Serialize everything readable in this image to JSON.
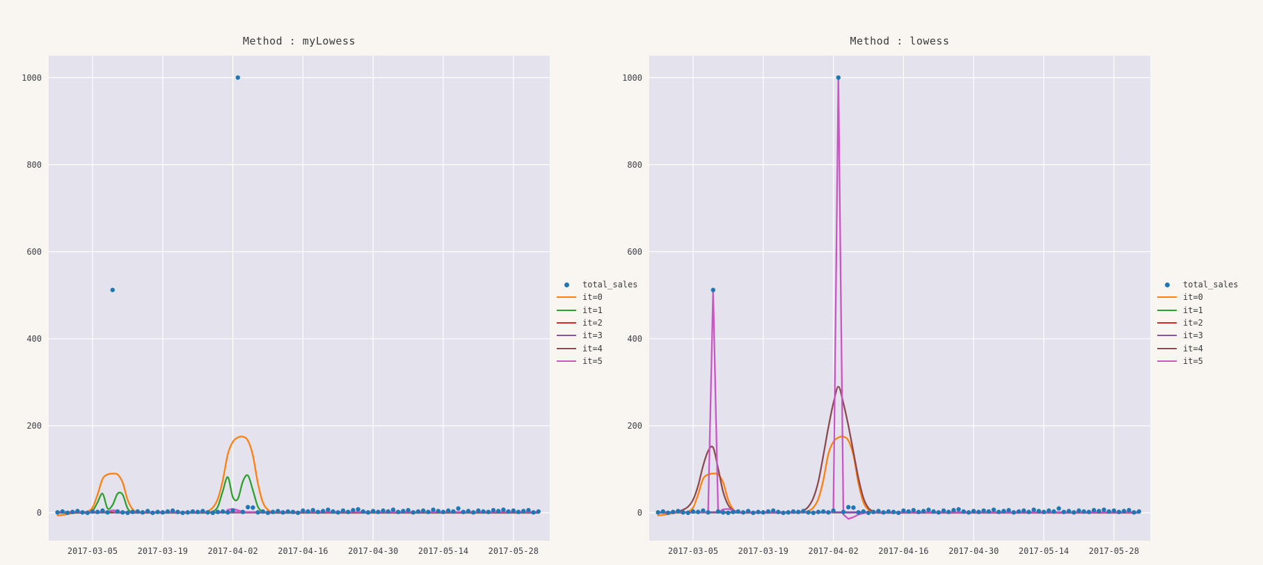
{
  "figure": {
    "background": "#f9f6f2",
    "plot_background": "#e4e2ed",
    "grid_color": "#ffffff",
    "text_color": "#3a3a3a",
    "tick_color": "#3d3d45"
  },
  "chart_data": [
    {
      "type": "scatter",
      "title": "Method : myLowess",
      "x_start_date": "2017-02-26",
      "x_unit": "day_offset",
      "x_tick_labels": [
        "2017-03-05",
        "2017-03-19",
        "2017-04-02",
        "2017-04-16",
        "2017-04-30",
        "2017-05-14",
        "2017-05-28"
      ],
      "x_tick_days": [
        7,
        21,
        35,
        49,
        63,
        77,
        91
      ],
      "y_ticks": [
        0,
        200,
        400,
        600,
        800,
        1000
      ],
      "ylim": [
        -64,
        1051
      ],
      "grid": true,
      "legend_position": "outside-right",
      "scatter": {
        "name": "total_sales",
        "color": "#1f77b4",
        "values": [
          1,
          3,
          0,
          2,
          4,
          1,
          0,
          3,
          2,
          5,
          1,
          512,
          3,
          1,
          0,
          2,
          3,
          1,
          4,
          0,
          2,
          1,
          3,
          5,
          2,
          0,
          1,
          3,
          2,
          4,
          1,
          0,
          2,
          3,
          1,
          5,
          1000,
          2,
          13,
          12,
          1,
          3,
          0,
          2,
          4,
          1,
          3,
          2,
          0,
          5,
          3,
          6,
          2,
          4,
          7,
          3,
          1,
          5,
          2,
          6,
          8,
          3,
          1,
          4,
          2,
          5,
          3,
          7,
          2,
          4,
          6,
          1,
          3,
          5,
          2,
          7,
          4,
          2,
          5,
          3,
          10,
          2,
          4,
          1,
          5,
          3,
          2,
          6,
          4,
          7,
          3,
          5,
          2,
          4,
          6,
          1,
          3
        ]
      },
      "series": [
        {
          "name": "it=0",
          "color": "#ff7f0e",
          "smooth": true,
          "points": [
            [
              0,
              -6
            ],
            [
              1,
              -5
            ],
            [
              2,
              -3
            ],
            [
              3,
              -1
            ],
            [
              4,
              0
            ],
            [
              5,
              0
            ],
            [
              6,
              3
            ],
            [
              7,
              12
            ],
            [
              8,
              42
            ],
            [
              9,
              78
            ],
            [
              10,
              88
            ],
            [
              11,
              90
            ],
            [
              12,
              88
            ],
            [
              13,
              70
            ],
            [
              14,
              30
            ],
            [
              15,
              8
            ],
            [
              16,
              1
            ],
            [
              17,
              0
            ],
            [
              20,
              0
            ],
            [
              28,
              0
            ],
            [
              29,
              1
            ],
            [
              30,
              4
            ],
            [
              31,
              12
            ],
            [
              32,
              32
            ],
            [
              33,
              75
            ],
            [
              34,
              135
            ],
            [
              35,
              163
            ],
            [
              36,
              173
            ],
            [
              37,
              175
            ],
            [
              38,
              166
            ],
            [
              39,
              132
            ],
            [
              40,
              68
            ],
            [
              41,
              24
            ],
            [
              42,
              7
            ],
            [
              43,
              1
            ],
            [
              44,
              0
            ],
            [
              50,
              0
            ],
            [
              96,
              0
            ]
          ]
        },
        {
          "name": "it=1",
          "color": "#2ca02c",
          "smooth": true,
          "points": [
            [
              0,
              0
            ],
            [
              5,
              0
            ],
            [
              6,
              0
            ],
            [
              7,
              4
            ],
            [
              8,
              24
            ],
            [
              9,
              44
            ],
            [
              10,
              10
            ],
            [
              11,
              18
            ],
            [
              12,
              44
            ],
            [
              13,
              42
            ],
            [
              14,
              10
            ],
            [
              15,
              1
            ],
            [
              16,
              0
            ],
            [
              25,
              0
            ],
            [
              30,
              0
            ],
            [
              31,
              3
            ],
            [
              32,
              14
            ],
            [
              33,
              50
            ],
            [
              34,
              82
            ],
            [
              35,
              36
            ],
            [
              36,
              32
            ],
            [
              37,
              72
            ],
            [
              38,
              86
            ],
            [
              39,
              52
            ],
            [
              40,
              14
            ],
            [
              41,
              3
            ],
            [
              42,
              0
            ],
            [
              50,
              0
            ],
            [
              96,
              0
            ]
          ]
        },
        {
          "name": "it=2",
          "color": "#d62728",
          "smooth": false,
          "points": [
            [
              0,
              0.5
            ],
            [
              96,
              0.5
            ]
          ]
        },
        {
          "name": "it=3",
          "color": "#8a4fb0",
          "smooth": false,
          "points": [
            [
              0,
              1
            ],
            [
              96,
              1
            ]
          ]
        },
        {
          "name": "it=4",
          "color": "#8a4a4f",
          "smooth": false,
          "points": [
            [
              0,
              1.5
            ],
            [
              96,
              1.5
            ]
          ]
        },
        {
          "name": "it=5",
          "color": "#ca55c5",
          "smooth": true,
          "points": [
            [
              0,
              2
            ],
            [
              8,
              2
            ],
            [
              10,
              3
            ],
            [
              11,
              6
            ],
            [
              12,
              4
            ],
            [
              13,
              2
            ],
            [
              32,
              2
            ],
            [
              34,
              7
            ],
            [
              35,
              9
            ],
            [
              36,
              6
            ],
            [
              37,
              3
            ],
            [
              38,
              2
            ],
            [
              96,
              2
            ]
          ]
        }
      ]
    },
    {
      "type": "scatter",
      "title": "Method : lowess",
      "x_start_date": "2017-02-26",
      "x_unit": "day_offset",
      "x_tick_labels": [
        "2017-03-05",
        "2017-03-19",
        "2017-04-02",
        "2017-04-16",
        "2017-04-30",
        "2017-05-14",
        "2017-05-28"
      ],
      "x_tick_days": [
        7,
        21,
        35,
        49,
        63,
        77,
        91
      ],
      "y_ticks": [
        0,
        200,
        400,
        600,
        800,
        1000
      ],
      "ylim": [
        -64,
        1051
      ],
      "grid": true,
      "legend_position": "outside-right",
      "scatter": {
        "name": "total_sales",
        "color": "#1f77b4",
        "values": [
          1,
          3,
          0,
          2,
          4,
          1,
          0,
          3,
          2,
          5,
          1,
          512,
          3,
          1,
          0,
          2,
          3,
          1,
          4,
          0,
          2,
          1,
          3,
          5,
          2,
          0,
          1,
          3,
          2,
          4,
          1,
          0,
          2,
          3,
          1,
          5,
          1000,
          2,
          13,
          12,
          1,
          3,
          0,
          2,
          4,
          1,
          3,
          2,
          0,
          5,
          3,
          6,
          2,
          4,
          7,
          3,
          1,
          5,
          2,
          6,
          8,
          3,
          1,
          4,
          2,
          5,
          3,
          7,
          2,
          4,
          6,
          1,
          3,
          5,
          2,
          7,
          4,
          2,
          5,
          3,
          10,
          2,
          4,
          1,
          5,
          3,
          2,
          6,
          4,
          7,
          3,
          5,
          2,
          4,
          6,
          1,
          3
        ]
      },
      "series": [
        {
          "name": "it=0",
          "color": "#ff7f0e",
          "smooth": true,
          "points": [
            [
              0,
              -6
            ],
            [
              1,
              -5
            ],
            [
              2,
              -3
            ],
            [
              3,
              -1
            ],
            [
              4,
              0
            ],
            [
              5,
              0
            ],
            [
              6,
              3
            ],
            [
              7,
              12
            ],
            [
              8,
              42
            ],
            [
              9,
              78
            ],
            [
              10,
              88
            ],
            [
              11,
              90
            ],
            [
              12,
              88
            ],
            [
              13,
              70
            ],
            [
              14,
              30
            ],
            [
              15,
              8
            ],
            [
              16,
              1
            ],
            [
              17,
              0
            ],
            [
              20,
              0
            ],
            [
              28,
              0
            ],
            [
              29,
              1
            ],
            [
              30,
              4
            ],
            [
              31,
              12
            ],
            [
              32,
              32
            ],
            [
              33,
              75
            ],
            [
              34,
              135
            ],
            [
              35,
              163
            ],
            [
              36,
              173
            ],
            [
              37,
              175
            ],
            [
              38,
              166
            ],
            [
              39,
              132
            ],
            [
              40,
              68
            ],
            [
              41,
              24
            ],
            [
              42,
              7
            ],
            [
              43,
              1
            ],
            [
              44,
              0
            ],
            [
              50,
              0
            ],
            [
              96,
              0
            ]
          ]
        },
        {
          "name": "it=1",
          "color": "#2ca02c",
          "smooth": false,
          "points": [
            [
              0,
              0.5
            ],
            [
              96,
              0.5
            ]
          ]
        },
        {
          "name": "it=2",
          "color": "#d62728",
          "smooth": false,
          "points": [
            [
              0,
              1
            ],
            [
              96,
              1
            ]
          ]
        },
        {
          "name": "it=3",
          "color": "#8a4fb0",
          "smooth": false,
          "points": [
            [
              0,
              1.5
            ],
            [
              96,
              1.5
            ]
          ]
        },
        {
          "name": "it=4",
          "color": "#8a4a4f",
          "smooth": true,
          "points": [
            [
              0,
              0
            ],
            [
              2,
              0
            ],
            [
              3,
              1
            ],
            [
              4,
              3
            ],
            [
              5,
              7
            ],
            [
              6,
              14
            ],
            [
              7,
              30
            ],
            [
              8,
              62
            ],
            [
              9,
              108
            ],
            [
              10,
              142
            ],
            [
              11,
              150
            ],
            [
              12,
              102
            ],
            [
              13,
              48
            ],
            [
              14,
              18
            ],
            [
              15,
              6
            ],
            [
              16,
              1
            ],
            [
              17,
              0
            ],
            [
              22,
              0
            ],
            [
              27,
              0
            ],
            [
              28,
              1
            ],
            [
              29,
              5
            ],
            [
              30,
              14
            ],
            [
              31,
              34
            ],
            [
              32,
              72
            ],
            [
              33,
              132
            ],
            [
              34,
              196
            ],
            [
              35,
              252
            ],
            [
              36,
              290
            ],
            [
              37,
              252
            ],
            [
              38,
              200
            ],
            [
              39,
              140
            ],
            [
              40,
              80
            ],
            [
              41,
              34
            ],
            [
              42,
              11
            ],
            [
              43,
              3
            ],
            [
              44,
              0
            ],
            [
              50,
              0
            ],
            [
              96,
              0
            ]
          ]
        },
        {
          "name": "it=5",
          "color": "#ca55c5",
          "smooth": false,
          "points": [
            [
              0,
              1
            ],
            [
              9,
              1
            ],
            [
              10,
              1
            ],
            [
              11,
              512
            ],
            [
              12,
              1
            ],
            [
              13,
              8
            ],
            [
              14,
              9
            ],
            [
              15,
              6
            ],
            [
              16,
              2
            ],
            [
              17,
              1
            ],
            [
              34,
              1
            ],
            [
              35,
              1
            ],
            [
              36,
              1000
            ],
            [
              37,
              -4
            ],
            [
              38,
              -14
            ],
            [
              39,
              -10
            ],
            [
              40,
              -4
            ],
            [
              41,
              -1
            ],
            [
              42,
              1
            ],
            [
              96,
              1
            ]
          ]
        }
      ]
    }
  ]
}
